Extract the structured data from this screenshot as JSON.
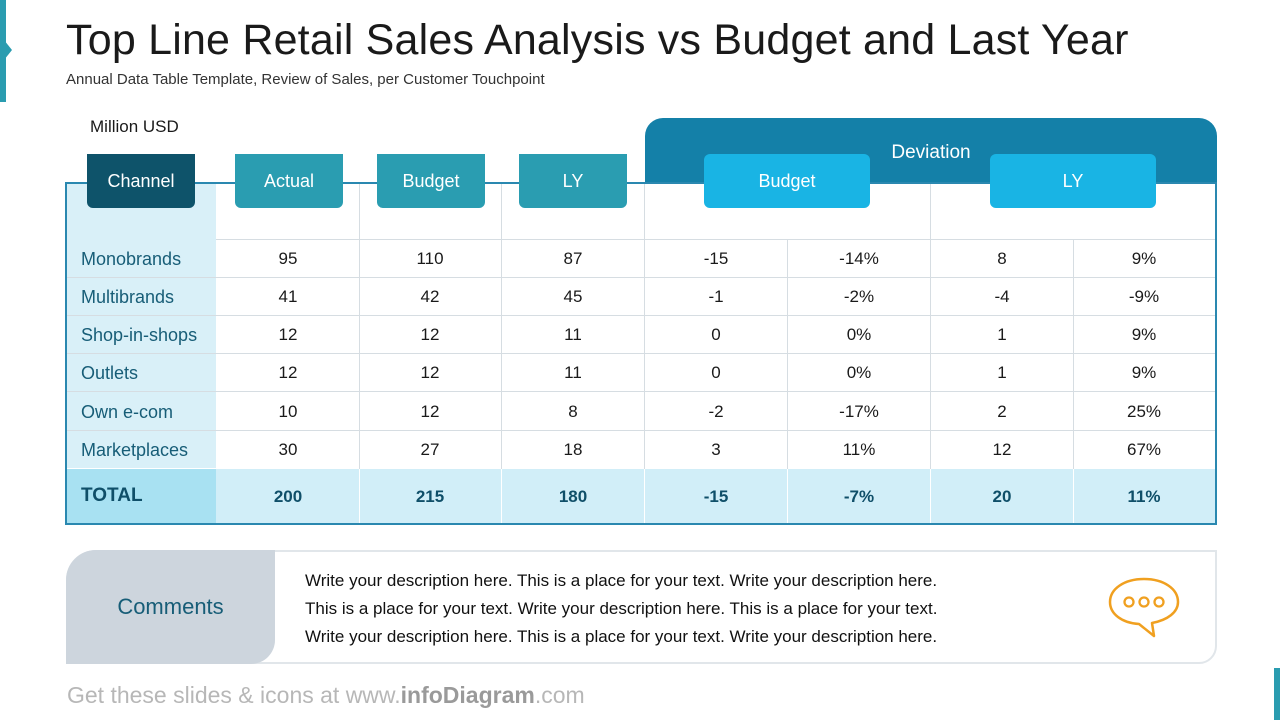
{
  "title": "Top Line Retail Sales Analysis vs Budget and Last Year",
  "subtitle": "Annual Data Table Template, Review of Sales, per Customer Touchpoint",
  "unit": "Million USD",
  "table": {
    "deviation_label": "Deviation",
    "headers": {
      "channel": "Channel",
      "actual": "Actual",
      "budget": "Budget",
      "ly": "LY",
      "dev_budget": "Budget",
      "dev_ly": "LY"
    },
    "rows": [
      {
        "label": "Monobrands",
        "values": [
          "95",
          "110",
          "87",
          "-15",
          "-14%",
          "8",
          "9%"
        ]
      },
      {
        "label": "Multibrands",
        "values": [
          "41",
          "42",
          "45",
          "-1",
          "-2%",
          "-4",
          "-9%"
        ]
      },
      {
        "label": "Shop-in-shops",
        "values": [
          "12",
          "12",
          "11",
          "0",
          "0%",
          "1",
          "9%"
        ]
      },
      {
        "label": "Outlets",
        "values": [
          "12",
          "12",
          "11",
          "0",
          "0%",
          "1",
          "9%"
        ]
      },
      {
        "label": "Own e-com",
        "values": [
          "10",
          "12",
          "8",
          "-2",
          "-17%",
          "2",
          "25%"
        ]
      },
      {
        "label": "Marketplaces",
        "values": [
          "30",
          "27",
          "18",
          "3",
          "11%",
          "12",
          "67%"
        ]
      }
    ],
    "total": {
      "label": "TOTAL",
      "values": [
        "200",
        "215",
        "180",
        "-15",
        "-7%",
        "20",
        "11%"
      ]
    }
  },
  "comments": {
    "label": "Comments",
    "lines": [
      "Write your description here. This is a place for your text. Write your description here.",
      "This is a place for your text. Write your description here. This is a place for your text.",
      "Write your description here. This is a place for your text. Write your description here."
    ],
    "icon": "speech-bubble-icon"
  },
  "footer": {
    "prefix": "Get these slides & icons at www.",
    "brand": "infoDiagram",
    "suffix": ".com"
  },
  "colors": {
    "accent": "#2a9cb0",
    "deviation_band": "#1480a8",
    "channel_header": "#0e536a",
    "deviation_tabs": "#19b4e4",
    "icon": "#f0a020"
  }
}
